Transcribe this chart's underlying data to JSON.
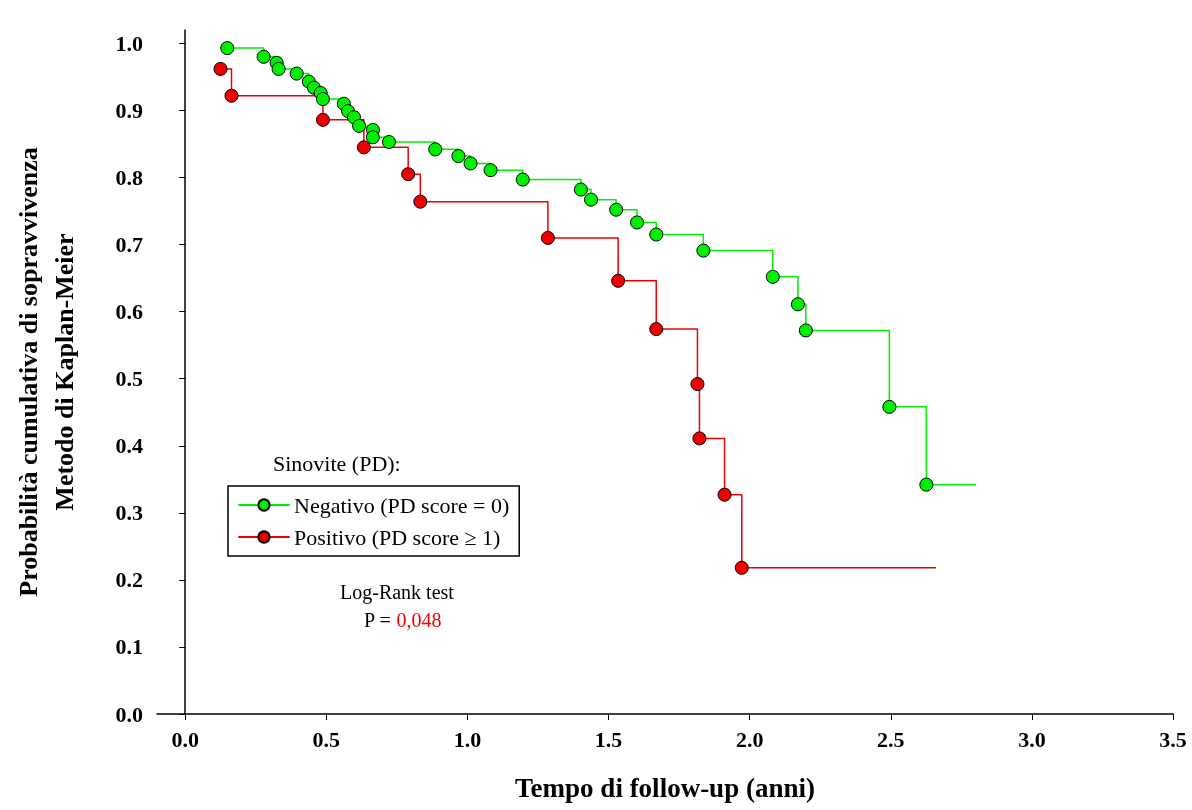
{
  "chart_data": {
    "type": "step",
    "xlabel": "Tempo di follow-up (anni)",
    "ylabel": "Probabilità cumulativa di sopravvivenza\nMetodo di Kaplan-Meier",
    "legend_title": "Sinovite (PD):",
    "legend": "left",
    "marker": "circle",
    "line_style": "solid",
    "grid": false,
    "xlim": [
      -0.1,
      3.5
    ],
    "xticks": [
      {
        "value": 0,
        "label": "0.0"
      },
      {
        "value": 0.5,
        "label": "0.5"
      },
      {
        "value": 1,
        "label": "1.0"
      },
      {
        "value": 1.5,
        "label": "1.5"
      },
      {
        "value": 2,
        "label": "2.0"
      },
      {
        "value": 2.5,
        "label": "2.5"
      },
      {
        "value": 3,
        "label": "3.0"
      },
      {
        "value": 3.5,
        "label": "3.5"
      }
    ],
    "ylim": [
      0,
      1.02
    ],
    "yticks": [
      {
        "value": 0,
        "label": "0.0"
      },
      {
        "value": 0.1,
        "label": "0.1"
      },
      {
        "value": 0.2,
        "label": "0.2"
      },
      {
        "value": 0.3,
        "label": "0.3"
      },
      {
        "value": 0.4,
        "label": "0.4"
      },
      {
        "value": 0.5,
        "label": "0.5"
      },
      {
        "value": 0.6,
        "label": "0.6"
      },
      {
        "value": 0.7,
        "label": "0.7"
      },
      {
        "value": 0.8,
        "label": "0.8"
      },
      {
        "value": 0.9,
        "label": "0.9"
      },
      {
        "value": 1,
        "label": "1.0"
      }
    ],
    "series": [
      {
        "name": "Negativo (PD score = 0)",
        "color": "#00ee00",
        "x": [
          0.149,
          0.278,
          0.324,
          0.331,
          0.395,
          0.438,
          0.456,
          0.48,
          0.488,
          0.562,
          0.577,
          0.598,
          0.616,
          0.665,
          0.665,
          0.722,
          0.886,
          0.968,
          1.011,
          1.082,
          1.196,
          1.402,
          1.438,
          1.527,
          1.601,
          1.669,
          1.836,
          2.082,
          2.171,
          2.199,
          2.495,
          2.626,
          2.8
        ],
        "values": [
          0.993,
          0.98,
          0.971,
          0.962,
          0.955,
          0.943,
          0.934,
          0.926,
          0.917,
          0.91,
          0.899,
          0.89,
          0.877,
          0.871,
          0.86,
          0.853,
          0.842,
          0.832,
          0.821,
          0.811,
          0.797,
          0.782,
          0.767,
          0.752,
          0.733,
          0.715,
          0.691,
          0.652,
          0.611,
          0.572,
          0.458,
          0.342,
          0.342
        ]
      },
      {
        "name": "Positivo (PD score ≥ 1)",
        "color": "#ee0000",
        "x": [
          0.125,
          0.164,
          0.488,
          0.633,
          0.79,
          0.833,
          1.285,
          1.534,
          1.669,
          1.815,
          1.822,
          1.911,
          1.972,
          2.658
        ],
        "values": [
          0.962,
          0.922,
          0.886,
          0.845,
          0.805,
          0.764,
          0.71,
          0.646,
          0.574,
          0.492,
          0.411,
          0.327,
          0.218,
          0.218
        ]
      }
    ],
    "annotations": [
      "Log-Rank test",
      "P = 0,048"
    ]
  }
}
